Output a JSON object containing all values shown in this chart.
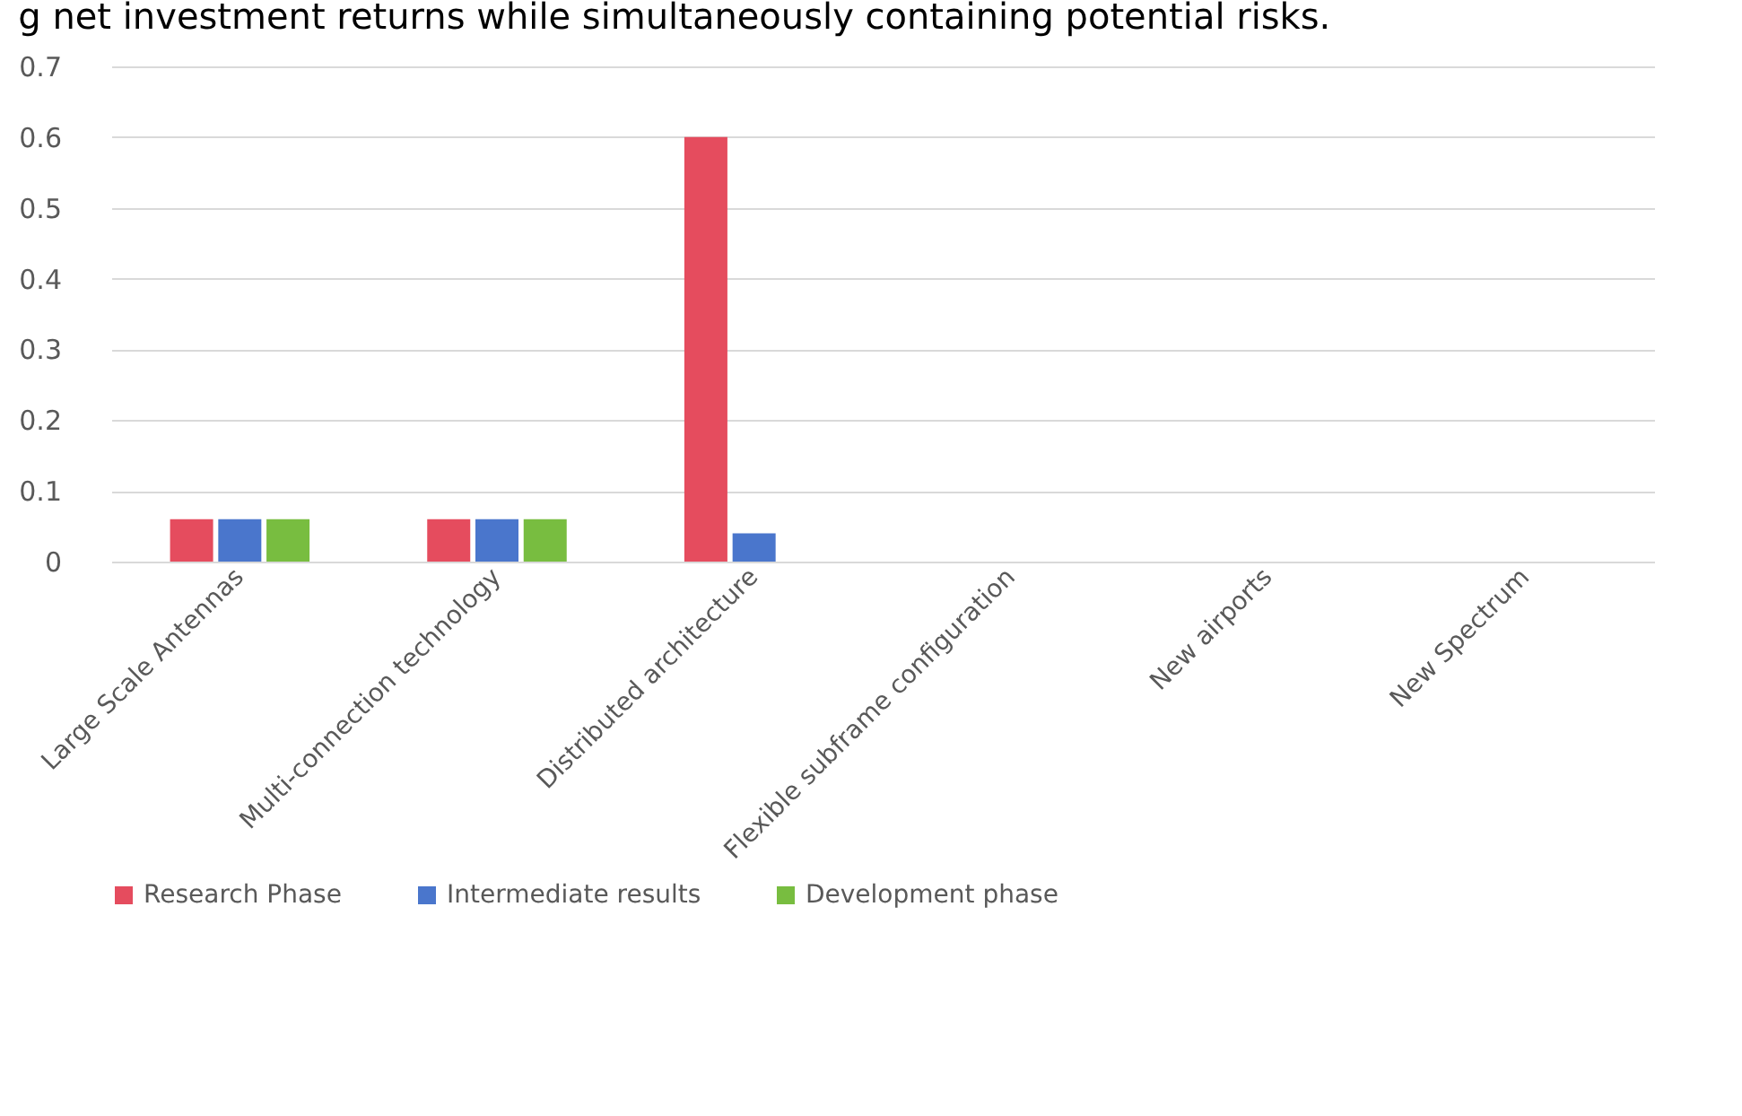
{
  "chart_data": {
    "type": "bar",
    "title": "g net investment returns while simultaneously containing potential risks.",
    "categories": [
      "Large Scale Antennas",
      "Multi-connection technology",
      "Distributed architecture",
      "Flexible subframe configuration",
      "New airports",
      "New Spectrum"
    ],
    "series": [
      {
        "name": "Research Phase",
        "color": "#e54c5e",
        "values": [
          0.06,
          0.06,
          0.6,
          null,
          null,
          null
        ]
      },
      {
        "name": "Intermediate results",
        "color": "#4a76cc",
        "values": [
          0.06,
          0.06,
          0.04,
          null,
          null,
          null
        ]
      },
      {
        "name": "Development phase",
        "color": "#78bd40",
        "values": [
          0.06,
          0.06,
          null,
          null,
          null,
          null
        ]
      }
    ],
    "ylim": [
      0,
      0.7
    ],
    "yticks": [
      0,
      0.1,
      0.2,
      0.3,
      0.4,
      0.5,
      0.6,
      0.7
    ],
    "grid": "y",
    "legend": "bottom"
  }
}
